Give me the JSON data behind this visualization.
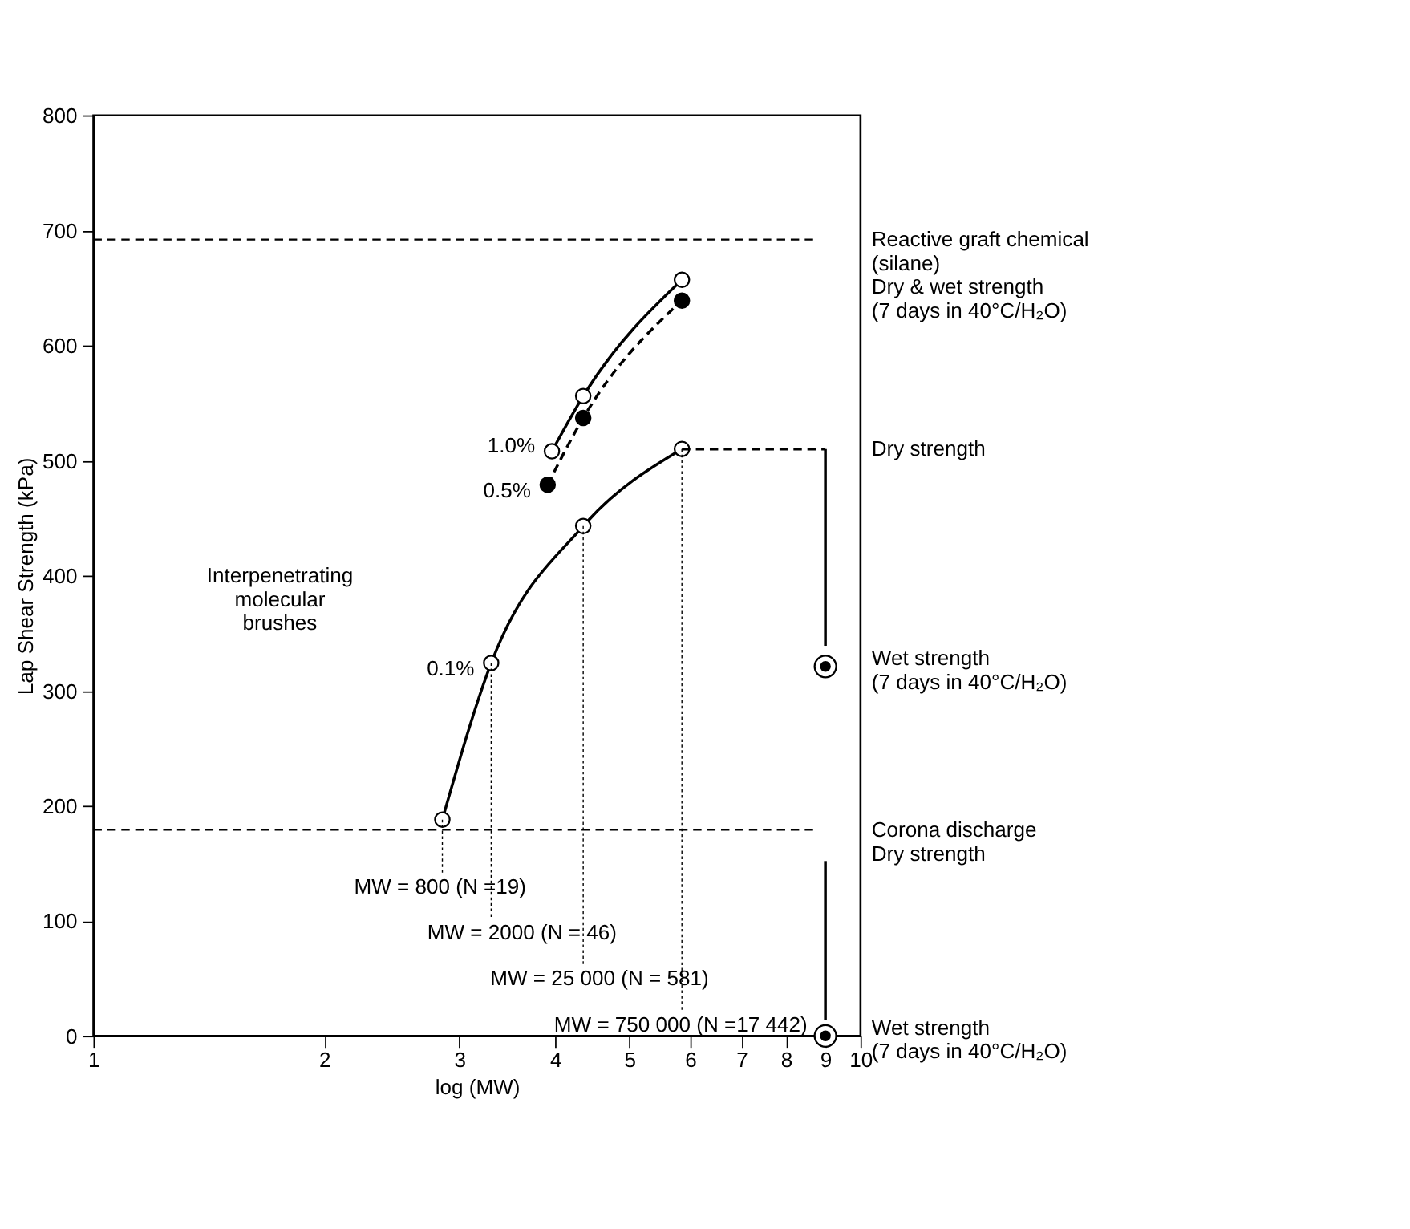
{
  "chart_data": {
    "type": "line",
    "xlabel": "log (MW)",
    "ylabel": "Lap Shear Strength (kPa)",
    "log": "x",
    "xlim": [
      1,
      10
    ],
    "xticks": [
      1,
      2,
      3,
      4,
      5,
      6,
      7,
      8,
      9,
      10
    ],
    "ylim": [
      0,
      800
    ],
    "yticks": [
      0,
      100,
      200,
      300,
      400,
      500,
      600,
      700,
      800
    ],
    "grid": false,
    "legend": false,
    "marker": "circle",
    "series": [
      {
        "name": "0.1%",
        "color": "#000000",
        "line_style": "solid",
        "x": [
          2.85,
          3.3,
          4.35,
          5.85
        ],
        "values": [
          188,
          324,
          443,
          510
        ]
      },
      {
        "name": "1.0%",
        "color": "#000000",
        "line_style": "solid",
        "x": [
          3.96,
          4.35,
          5.85
        ],
        "values": [
          508,
          556,
          657
        ]
      },
      {
        "name": "0.5%",
        "color": "#000000",
        "line_style": "dashed",
        "x": [
          3.91,
          4.35,
          5.85
        ],
        "values": [
          479,
          537,
          639
        ]
      },
      {
        "type": "scatter",
        "color": "#000000",
        "x": [
          9,
          9
        ],
        "values": [
          321,
          0
        ]
      },
      {
        "type": "line",
        "color": "#000000",
        "line_style": "dashed",
        "marker": "none",
        "x": [
          5.85,
          9
        ],
        "values": [
          510,
          510
        ]
      },
      {
        "type": "line",
        "color": "#000000",
        "line_style": "solid",
        "marker": "none",
        "x": [
          9,
          9
        ],
        "values": [
          510,
          339
        ]
      },
      {
        "type": "line",
        "color": "#000000",
        "line_style": "solid",
        "marker": "none",
        "x": [
          9,
          9
        ],
        "values": [
          152,
          14
        ]
      }
    ],
    "ref_lines": [
      {
        "axis": "y",
        "value": 692,
        "label": "Reactive graft chemical\n(silane)\nDry & wet strength\n(7 days in 40°C/H₂O)",
        "line_style": "dashed"
      },
      {
        "axis": "y",
        "value": 179,
        "label": "Corona discharge\nDry strength",
        "line_style": "dashed"
      }
    ],
    "annotations": [
      {
        "text": "Dry strength",
        "x": 9,
        "y": 510
      },
      {
        "text": "Wet strength\n(7 days in 40°C/H₂O)",
        "x": 9,
        "y": 321
      },
      {
        "text": "Wet strength\n(7 days in 40°C/H₂O)",
        "x": 9,
        "y": 0
      },
      "Interpenetrating\nmolecular\nbrushes",
      {
        "text": "MW = 800 (N =19)",
        "x": 2.85,
        "y": 188
      },
      {
        "text": "MW = 2000 (N = 46)",
        "x": 3.3,
        "y": 324
      },
      {
        "text": "MW = 25 000 (N = 581)",
        "x": 4.35,
        "y": 443
      },
      {
        "text": "MW = 750 000 (N =17 442)",
        "x": 5.85,
        "y": 510
      }
    ]
  }
}
